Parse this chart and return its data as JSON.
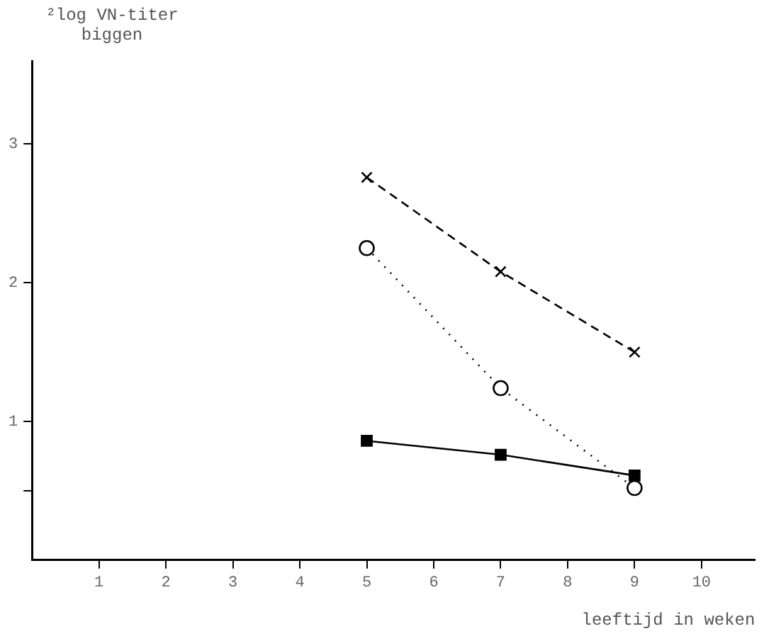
{
  "chart_data": {
    "type": "line",
    "ylabel": "²log VN-titer biggen",
    "xlabel": "leeftijd in weken",
    "xlim": [
      0,
      10.8
    ],
    "xticks": [
      1,
      2,
      3,
      4,
      5,
      6,
      7,
      8,
      9,
      10
    ],
    "ylim": [
      0,
      3.6
    ],
    "yticks": [
      {
        "value": 0.5,
        "label": null
      },
      1,
      2,
      3
    ],
    "grid": false,
    "legend": false,
    "series": [
      {
        "color": "#000000",
        "marker": "cross",
        "line_style": "dashed",
        "x": [
          5,
          7,
          9
        ],
        "values": [
          2.76,
          2.08,
          1.5
        ]
      },
      {
        "color": "#000000",
        "marker": "circle",
        "line_style": "dotted",
        "x": [
          5,
          7,
          9
        ],
        "values": [
          2.25,
          1.24,
          0.52
        ]
      },
      {
        "color": "#000000",
        "marker": "square",
        "line_style": "solid",
        "x": [
          5,
          7,
          9
        ],
        "values": [
          0.86,
          0.76,
          0.61
        ]
      }
    ]
  }
}
